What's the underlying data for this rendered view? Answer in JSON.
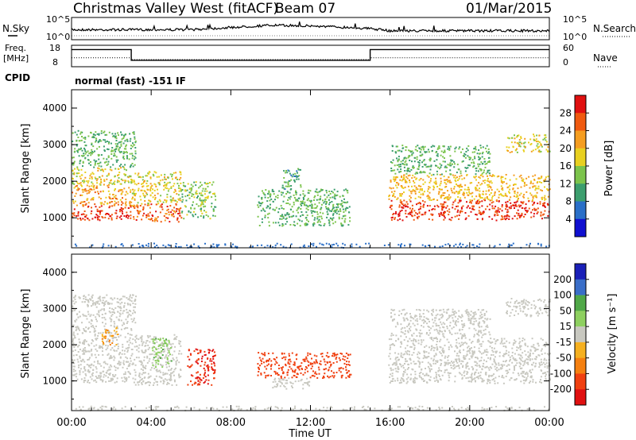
{
  "header": {
    "title": "Christmas Valley West (fitACF)",
    "beam": "Beam 07",
    "date": "01/Mar/2015"
  },
  "mini_panels": {
    "nsky_label": "N.Sky",
    "nsearch_label": "N.Search",
    "nsky_ticks": [
      "10^5",
      "10^0"
    ],
    "nsearch_ticks": [
      "10^5",
      "10^0"
    ],
    "freq_label": [
      "Freq.",
      "[MHz]"
    ],
    "freq_ticks": [
      "18",
      "8"
    ],
    "nave_label": "Nave",
    "nave_ticks": [
      "60",
      "0"
    ],
    "cpid_label": "CPID",
    "cpid_text": "normal (fast) -151 IF"
  },
  "chart_data": [
    {
      "type": "line",
      "panel": "noise",
      "xlim": [
        0,
        24
      ],
      "ylabel_left": "N.Sky",
      "ylabel_right": "N.Search",
      "series": [
        {
          "name": "N.Sky",
          "x": [
            0,
            2,
            4,
            6,
            8,
            10,
            12,
            14,
            15,
            16,
            18,
            20,
            22,
            24
          ],
          "values": [
            0.45,
            0.45,
            0.45,
            0.45,
            0.55,
            0.65,
            0.62,
            0.55,
            0.5,
            0.4,
            0.4,
            0.4,
            0.4,
            0.4
          ]
        }
      ]
    },
    {
      "type": "line",
      "panel": "frequency-nave",
      "xlim": [
        0,
        24
      ],
      "ylabel_left": "Freq. [MHz]",
      "ylabel_right": "Nave",
      "ylim_left": [
        8,
        18
      ],
      "ylim_right": [
        0,
        60
      ],
      "series": [
        {
          "name": "Freq.",
          "x": [
            0,
            3.0,
            3.0,
            15.0,
            15.0,
            24
          ],
          "values": [
            16,
            16,
            11,
            11,
            16,
            16
          ]
        },
        {
          "name": "Nave",
          "x": [
            0,
            3.0,
            3.0,
            15.0,
            15.0,
            24
          ],
          "values": [
            25,
            25,
            20,
            20,
            25,
            25
          ]
        }
      ]
    },
    {
      "type": "heatmap",
      "panel": "power",
      "xlabel": "",
      "ylabel": "Slant Range [km]",
      "xlim": [
        0,
        24
      ],
      "ylim": [
        180,
        4500
      ],
      "yticks": [
        1000,
        2000,
        3000,
        4000
      ],
      "colorbar_label": "Power [dB]",
      "colorbar_ticks": [
        4,
        8,
        12,
        16,
        20,
        24,
        28
      ],
      "colorbar_colors": [
        "#1010d0",
        "#2a6fc8",
        "#3c9e6e",
        "#7cc44c",
        "#e8d020",
        "#f59d20",
        "#f05a10",
        "#e01010"
      ],
      "regions": [
        {
          "t0": 0.0,
          "t1": 3.0,
          "r0": 950,
          "r1": 1350,
          "level": 28
        },
        {
          "t0": 0.0,
          "t1": 3.0,
          "r0": 1350,
          "r1": 1900,
          "level": 22
        },
        {
          "t0": 0.0,
          "t1": 3.0,
          "r0": 1900,
          "r1": 2400,
          "level": 18
        },
        {
          "t0": 0.0,
          "t1": 3.2,
          "r0": 2400,
          "r1": 3400,
          "level": 12
        },
        {
          "t0": 3.0,
          "t1": 5.5,
          "r0": 900,
          "r1": 1400,
          "level": 26
        },
        {
          "t0": 3.0,
          "t1": 5.5,
          "r0": 1400,
          "r1": 2300,
          "level": 18
        },
        {
          "t0": 5.5,
          "t1": 7.2,
          "r0": 1000,
          "r1": 2000,
          "level": 14
        },
        {
          "t0": 9.3,
          "t1": 14.0,
          "r0": 800,
          "r1": 1800,
          "level": 12
        },
        {
          "t0": 10.5,
          "t1": 11.5,
          "r0": 1800,
          "r1": 2400,
          "level": 10
        },
        {
          "t0": 15.9,
          "t1": 24.0,
          "r0": 950,
          "r1": 1500,
          "level": 28
        },
        {
          "t0": 15.9,
          "t1": 24.0,
          "r0": 1500,
          "r1": 2200,
          "level": 20
        },
        {
          "t0": 16.0,
          "t1": 21.0,
          "r0": 2200,
          "r1": 3000,
          "level": 12
        },
        {
          "t0": 21.8,
          "t1": 24.0,
          "r0": 2800,
          "r1": 3300,
          "level": 18
        }
      ]
    },
    {
      "type": "heatmap",
      "panel": "velocity",
      "xlabel": "Time UT",
      "ylabel": "Slant Range [km]",
      "xlim": [
        0,
        24
      ],
      "ylim": [
        180,
        4500
      ],
      "yticks": [
        1000,
        2000,
        3000,
        4000
      ],
      "xticks": [
        "00:00",
        "04:00",
        "08:00",
        "12:00",
        "16:00",
        "20:00",
        "00:00"
      ],
      "colorbar_label": "Velocity [m s⁻¹]",
      "colorbar_ticks": [
        200,
        100,
        50,
        15,
        -15,
        -50,
        -100,
        -200
      ],
      "colorbar_colors": [
        "#1a20b8",
        "#3a6ec8",
        "#50a848",
        "#8ed060",
        "#c8c8c0",
        "#f5b020",
        "#f58010",
        "#f04010",
        "#e01010"
      ],
      "regions": [
        {
          "t0": 0.0,
          "t1": 3.0,
          "r0": 950,
          "r1": 2400,
          "level": 0
        },
        {
          "t0": 0.0,
          "t1": 3.2,
          "r0": 2400,
          "r1": 3400,
          "level": 0
        },
        {
          "t0": 1.5,
          "t1": 2.3,
          "r0": 2000,
          "r1": 2500,
          "level": -50
        },
        {
          "t0": 3.0,
          "t1": 5.5,
          "r0": 900,
          "r1": 2300,
          "level": 0
        },
        {
          "t0": 4.0,
          "t1": 5.0,
          "r0": 1400,
          "r1": 2200,
          "level": 40
        },
        {
          "t0": 5.8,
          "t1": 7.2,
          "r0": 900,
          "r1": 1900,
          "level": -200
        },
        {
          "t0": 9.3,
          "t1": 14.0,
          "r0": 1100,
          "r1": 1800,
          "level": -150
        },
        {
          "t0": 10.0,
          "t1": 12.0,
          "r0": 800,
          "r1": 1100,
          "level": 0
        },
        {
          "t0": 15.9,
          "t1": 24.0,
          "r0": 950,
          "r1": 2200,
          "level": 0
        },
        {
          "t0": 16.0,
          "t1": 21.0,
          "r0": 2200,
          "r1": 3000,
          "level": 0
        },
        {
          "t0": 21.8,
          "t1": 24.0,
          "r0": 2800,
          "r1": 3300,
          "level": 0
        }
      ]
    }
  ]
}
